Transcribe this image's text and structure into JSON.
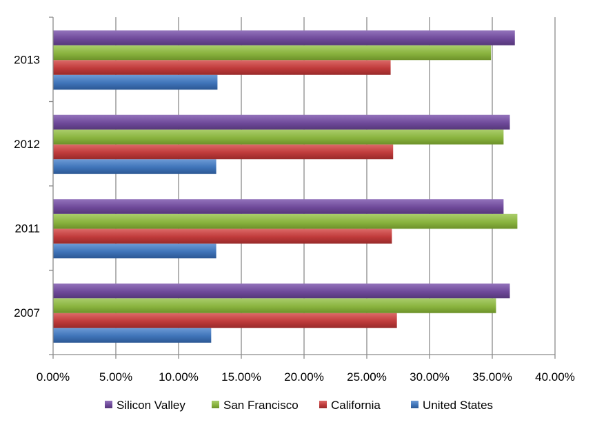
{
  "chart_data": {
    "type": "bar",
    "orientation": "horizontal",
    "categories": [
      "2007",
      "2011",
      "2012",
      "2013"
    ],
    "series": [
      {
        "name": "United States",
        "values": [
          0.126,
          0.13,
          0.13,
          0.131
        ],
        "color": "#3f74b9",
        "color_light": "#6d9bd6",
        "color_dark": "#2b5793"
      },
      {
        "name": "California",
        "values": [
          0.274,
          0.27,
          0.271,
          0.269
        ],
        "color": "#c03b3b",
        "color_light": "#dc6a68",
        "color_dark": "#982a2a"
      },
      {
        "name": "San Francisco",
        "values": [
          0.353,
          0.37,
          0.359,
          0.349
        ],
        "color": "#8ab43f",
        "color_light": "#aacd6b",
        "color_dark": "#6c9129"
      },
      {
        "name": "Silicon Valley",
        "values": [
          0.364,
          0.359,
          0.364,
          0.368
        ],
        "color": "#6f4a9a",
        "color_light": "#9373bb",
        "color_dark": "#553679"
      }
    ],
    "x_ticks": [
      "0.00%",
      "5.00%",
      "10.00%",
      "15.00%",
      "20.00%",
      "25.00%",
      "30.00%",
      "35.00%",
      "40.00%"
    ],
    "xlim": [
      0,
      0.4
    ],
    "grid": true,
    "legend_position": "bottom",
    "legend_order": [
      "Silicon Valley",
      "San Francisco",
      "California",
      "United States"
    ],
    "title": "",
    "xlabel": "",
    "ylabel": ""
  }
}
